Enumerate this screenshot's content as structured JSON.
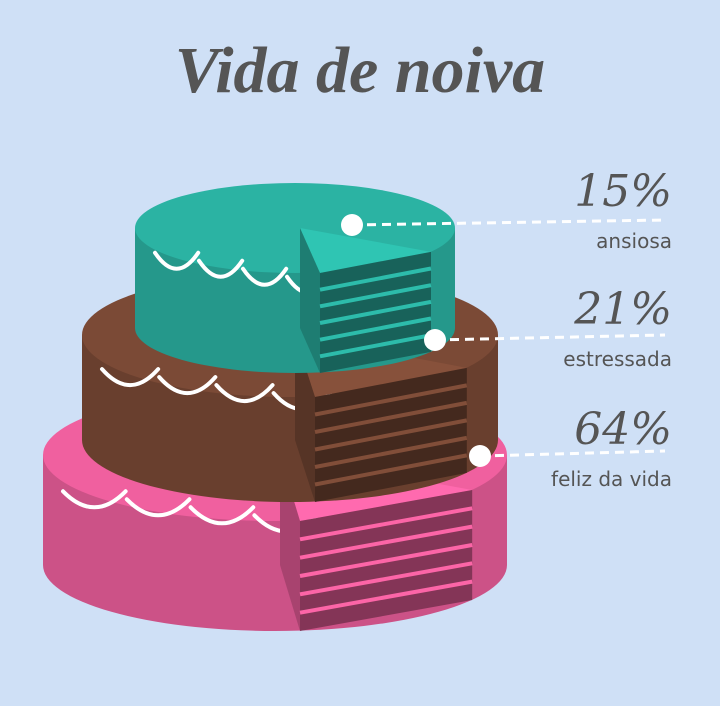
{
  "chart_data": {
    "type": "cake",
    "title": "Vida de noiva",
    "categories": [
      "ansiosa",
      "estressada",
      "feliz da vida"
    ],
    "values": [
      15,
      21,
      64
    ],
    "value_labels": [
      "15%",
      "21%",
      "64%"
    ],
    "colors": [
      "#2bb3a3",
      "#7b4a36",
      "#f0609f"
    ]
  }
}
